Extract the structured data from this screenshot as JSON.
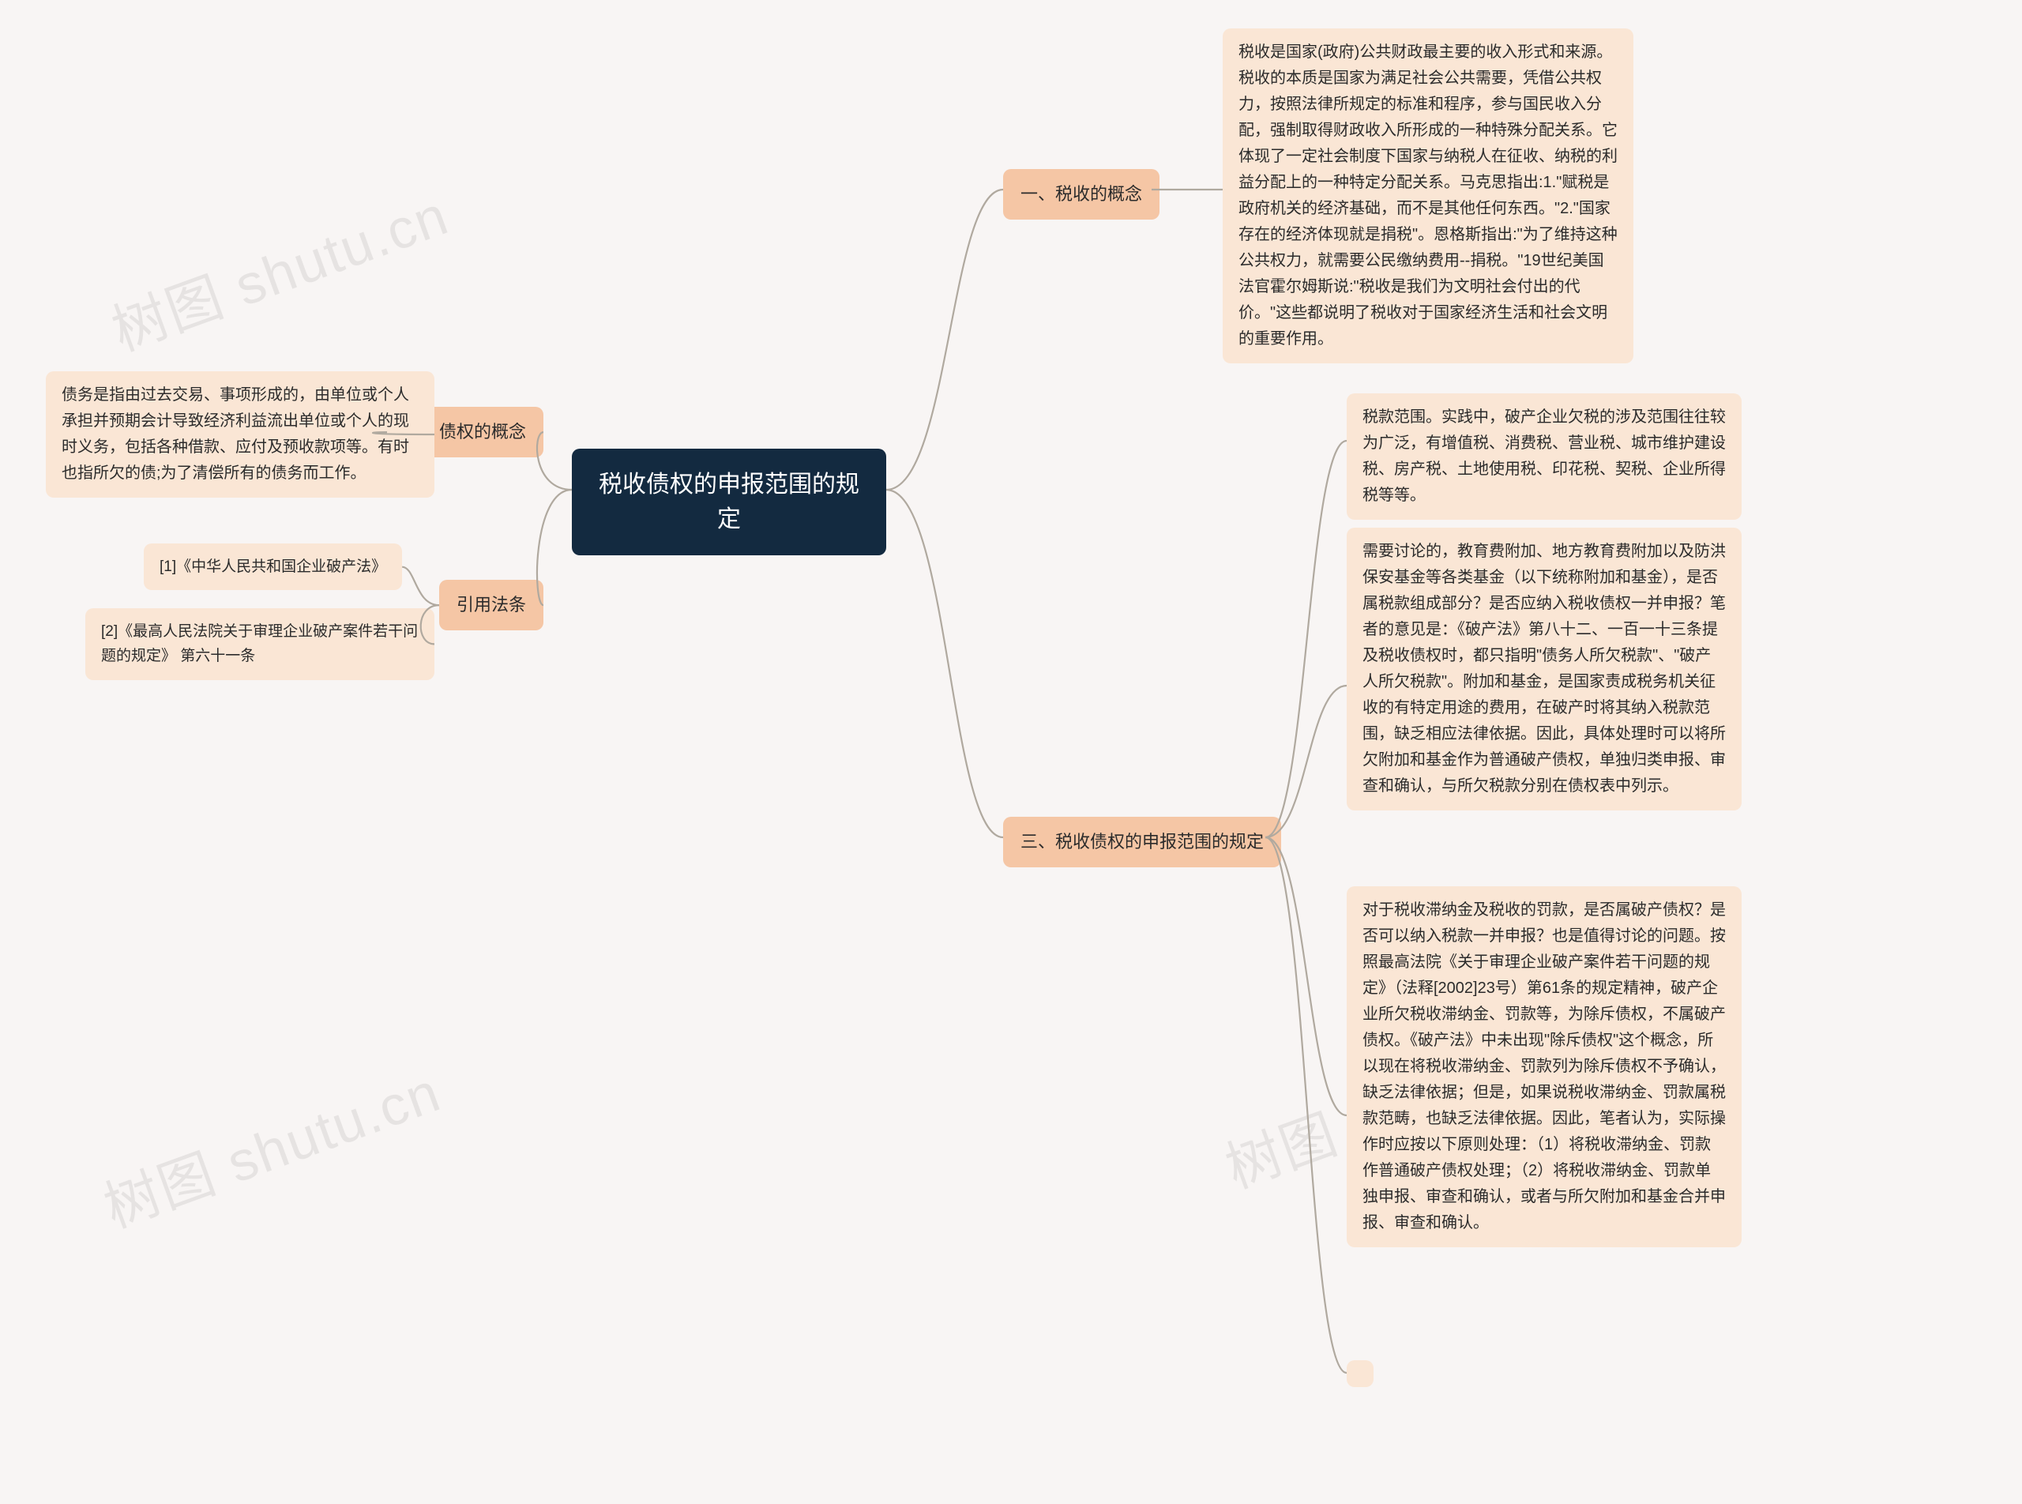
{
  "watermark": "树图 shutu.cn",
  "colors": {
    "background": "#f8f5f4",
    "center_bg": "#132a40",
    "center_text": "#ffffff",
    "branch_bg": "#f5c6a5",
    "leaf_bg": "#fae6d5",
    "node_text": "#2b2b2b",
    "connector": "#b0a99f",
    "watermark": "rgba(0,0,0,0.07)"
  },
  "center": {
    "line1": "税收债权的申报范围的规",
    "line2": "定"
  },
  "right": {
    "b1": {
      "label": "一、税收的概念"
    },
    "b1_leaf": "税收是国家(政府)公共财政最主要的收入形式和来源。税收的本质是国家为满足社会公共需要，凭借公共权力，按照法律所规定的标准和程序，参与国民收入分配，强制取得财政收入所形成的一种特殊分配关系。它体现了一定社会制度下国家与纳税人在征收、纳税的利益分配上的一种特定分配关系。马克思指出:1.\"赋税是政府机关的经济基础，而不是其他任何东西。\"2.\"国家存在的经济体现就是捐税\"。恩格斯指出:\"为了维持这种公共权力，就需要公民缴纳费用--捐税。\"19世纪美国法官霍尔姆斯说:\"税收是我们为文明社会付出的代价。\"这些都说明了税收对于国家经济生活和社会文明的重要作用。",
    "b3": {
      "label": "三、税收债权的申报范围的规定"
    },
    "b3_leaf1": "税款范围。实践中，破产企业欠税的涉及范围往往较为广泛，有增值税、消费税、营业税、城市维护建设税、房产税、土地使用税、印花税、契税、企业所得税等等。",
    "b3_leaf2": "需要讨论的，教育费附加、地方教育费附加以及防洪保安基金等各类基金（以下统称附加和基金），是否属税款组成部分？是否应纳入税收债权一并申报？笔者的意见是：《破产法》第八十二、一百一十三条提及税收债权时，都只指明\"债务人所欠税款\"、\"破产人所欠税款\"。附加和基金，是国家责成税务机关征收的有特定用途的费用，在破产时将其纳入税款范围，缺乏相应法律依据。因此，具体处理时可以将所欠附加和基金作为普通破产债权，单独归类申报、审查和确认，与所欠税款分别在债权表中列示。",
    "b3_leaf3": "对于税收滞纳金及税收的罚款，是否属破产债权？是否可以纳入税款一并申报？也是值得讨论的问题。按照最高法院《关于审理企业破产案件若干问题的规定》（法释[2002]23号）第61条的规定精神，破产企业所欠税收滞纳金、罚款等，为除斥债权，不属破产债权。《破产法》中未出现\"除斥债权\"这个概念，所以现在将税收滞纳金、罚款列为除斥债权不予确认，缺乏法律依据；但是，如果说税收滞纳金、罚款属税款范畴，也缺乏法律依据。因此，笔者认为，实际操作时应按以下原则处理：（1）将税收滞纳金、罚款作普通破产债权处理；（2）将税收滞纳金、罚款单独申报、审查和确认，或者与所欠附加和基金合并申报、审查和确认。"
  },
  "left": {
    "b2": {
      "label": "二、债权的概念"
    },
    "b2_leaf": "债务是指由过去交易、事项形成的，由单位或个人承担并预期会计导致经济利益流出单位或个人的现时义务，包括各种借款、应付及预收款项等。有时也指所欠的债;为了清偿所有的债务而工作。",
    "b4": {
      "label": "引用法条"
    },
    "b4_leaf1": "[1]《中华人民共和国企业破产法》",
    "b4_leaf2": "[2]《最高人民法院关于审理企业破产案件若干问题的规定》 第六十一条"
  }
}
